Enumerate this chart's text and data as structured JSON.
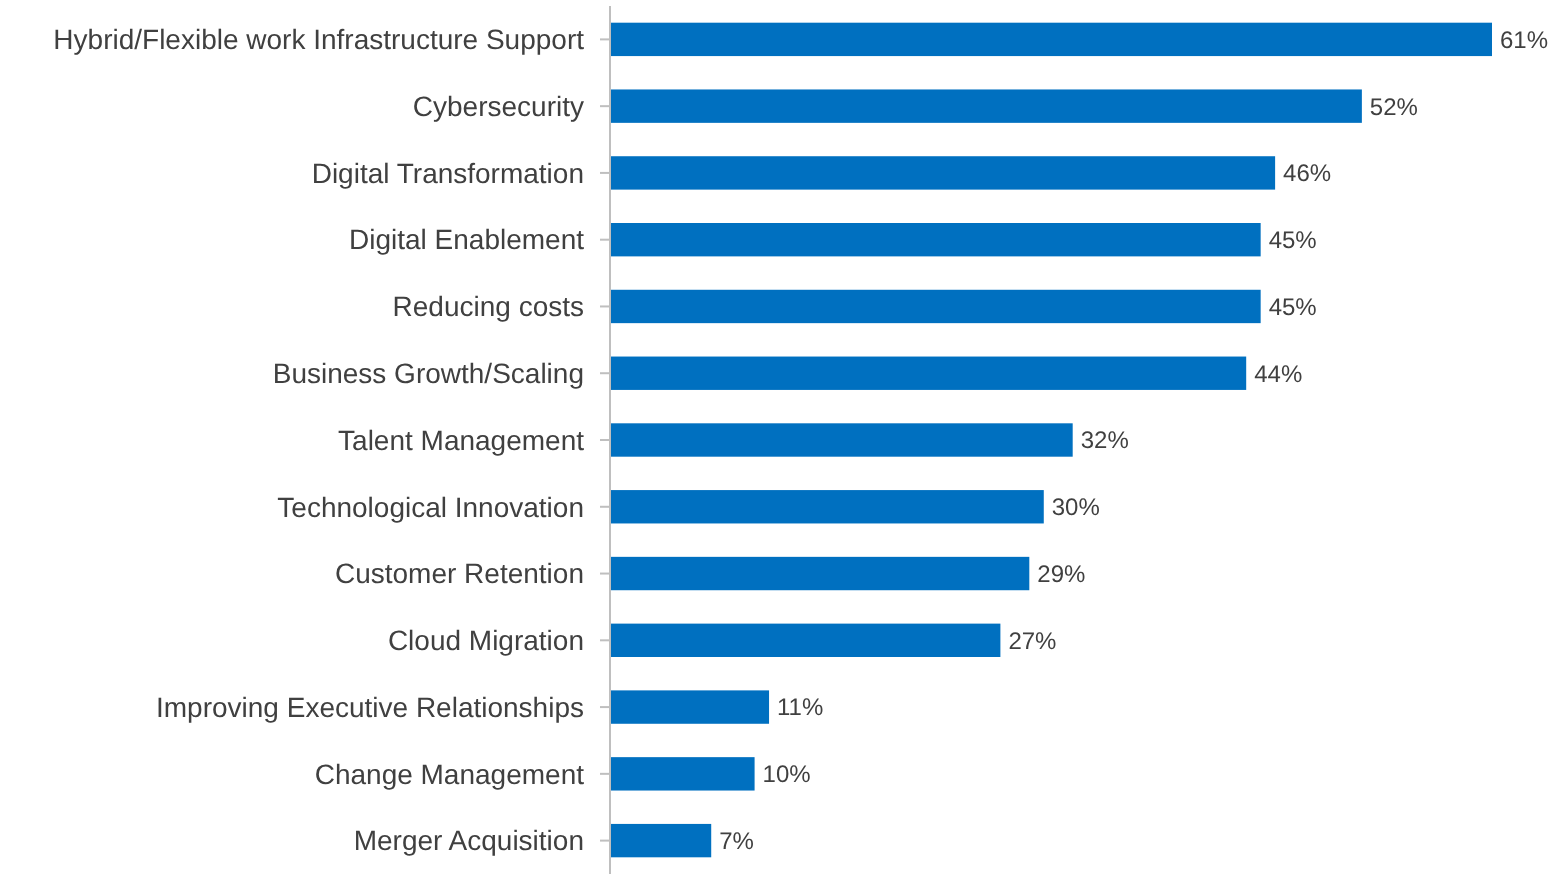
{
  "chart_data": {
    "type": "bar",
    "orientation": "horizontal",
    "categories": [
      "Hybrid/Flexible work Infrastructure Support",
      "Cybersecurity",
      "Digital Transformation",
      "Digital Enablement",
      "Reducing costs",
      "Business Growth/Scaling",
      "Talent Management",
      "Technological Innovation",
      "Customer Retention",
      "Cloud Migration",
      "Improving Executive Relationships",
      "Change Management",
      "Merger Acquisition"
    ],
    "values": [
      61,
      52,
      46,
      45,
      45,
      44,
      32,
      30,
      29,
      27,
      11,
      10,
      7
    ],
    "value_labels": [
      "61%",
      "52%",
      "46%",
      "45%",
      "45%",
      "44%",
      "32%",
      "30%",
      "29%",
      "27%",
      "11%",
      "10%",
      "7%"
    ],
    "color": "#0070c0"
  }
}
